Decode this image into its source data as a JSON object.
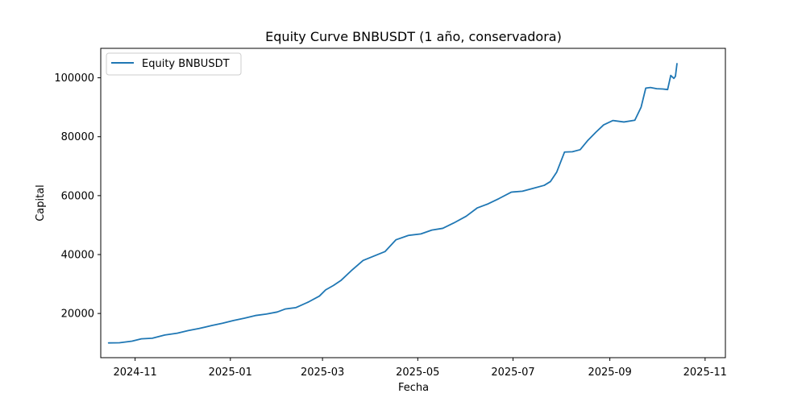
{
  "chart_data": {
    "type": "line",
    "title": "Equity Curve BNBUSDT (1 año, conservadora)",
    "xlabel": "Fecha",
    "ylabel": "Capital",
    "x_tick_labels": [
      "2024-11",
      "2025-01",
      "2025-03",
      "2025-05",
      "2025-07",
      "2025-09",
      "2025-11"
    ],
    "y_tick_labels": [
      "20000",
      "40000",
      "60000",
      "80000",
      "100000"
    ],
    "x_ticks": [
      "2024-11-01",
      "2025-01-01",
      "2025-03-01",
      "2025-05-01",
      "2025-07-01",
      "2025-09-01",
      "2025-11-01"
    ],
    "y_ticks": [
      20000,
      40000,
      60000,
      80000,
      100000
    ],
    "xlim": [
      "2024-10-10",
      "2025-11-14"
    ],
    "ylim": [
      5000,
      110000
    ],
    "grid": false,
    "legend_position": "top-left",
    "series": [
      {
        "name": "Equity BNBUSDT",
        "color": "#1f77b4",
        "x": [
          "2024-10-15",
          "2024-10-22",
          "2024-10-30",
          "2024-11-05",
          "2024-11-12",
          "2024-11-20",
          "2024-11-28",
          "2024-12-05",
          "2024-12-12",
          "2024-12-20",
          "2024-12-27",
          "2025-01-03",
          "2025-01-10",
          "2025-01-17",
          "2025-01-24",
          "2025-01-31",
          "2025-02-05",
          "2025-02-12",
          "2025-02-20",
          "2025-02-27",
          "2025-03-03",
          "2025-03-08",
          "2025-03-13",
          "2025-03-20",
          "2025-03-27",
          "2025-04-03",
          "2025-04-10",
          "2025-04-17",
          "2025-04-25",
          "2025-05-03",
          "2025-05-10",
          "2025-05-17",
          "2025-05-24",
          "2025-06-01",
          "2025-06-08",
          "2025-06-15",
          "2025-06-22",
          "2025-06-30",
          "2025-07-07",
          "2025-07-14",
          "2025-07-21",
          "2025-07-25",
          "2025-07-29",
          "2025-08-03",
          "2025-08-08",
          "2025-08-13",
          "2025-08-18",
          "2025-08-23",
          "2025-08-28",
          "2025-09-03",
          "2025-09-10",
          "2025-09-17",
          "2025-09-21",
          "2025-09-24",
          "2025-09-27",
          "2025-10-01",
          "2025-10-05",
          "2025-10-08",
          "2025-10-10",
          "2025-10-12",
          "2025-10-13",
          "2025-10-14"
        ],
        "y": [
          10000,
          10050,
          10600,
          11400,
          11600,
          12700,
          13300,
          14200,
          14900,
          15900,
          16700,
          17600,
          18400,
          19300,
          19800,
          20500,
          21500,
          22000,
          23900,
          25900,
          28000,
          29500,
          31300,
          34800,
          38000,
          39500,
          41000,
          45000,
          46500,
          47000,
          48300,
          48900,
          50700,
          53000,
          55800,
          57200,
          59000,
          61200,
          61500,
          62500,
          63500,
          64800,
          68000,
          74800,
          74900,
          75600,
          78800,
          81500,
          84000,
          85500,
          85000,
          85600,
          90000,
          96500,
          96700,
          96300,
          96200,
          96000,
          100800,
          99800,
          100500,
          104800
        ]
      }
    ]
  }
}
